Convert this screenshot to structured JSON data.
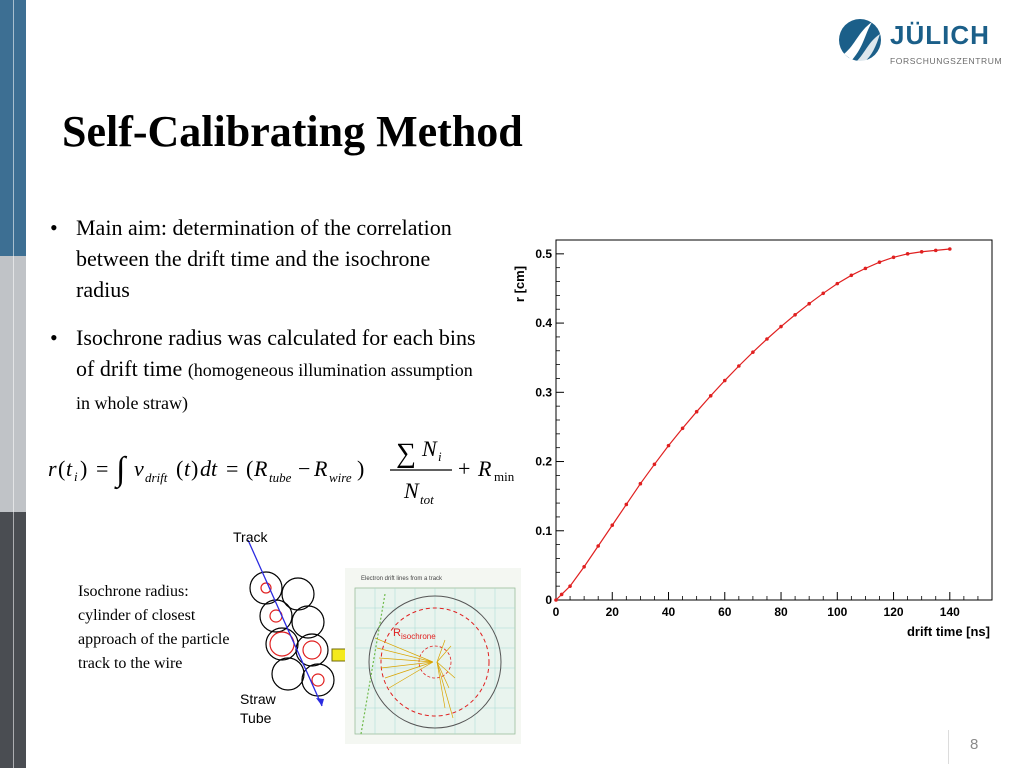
{
  "slide": {
    "title": "Self-Calibrating Method",
    "page_number": "8"
  },
  "logo": {
    "name": "JÜLICH",
    "subtitle": "FORSCHUNGSZENTRUM",
    "color": "#1b5f89"
  },
  "bullets": [
    {
      "text": "Main aim: determination of the correlation between the drift time and the isochrone radius"
    },
    {
      "text": "Isochrone radius was calculated for each bins of drift time ",
      "small": "(homogeneous illumination assumption in whole straw)"
    }
  ],
  "formula": {
    "text": "r(t_i) = ∫ v_drift(t) dt = (R_tube − R_wire) · ΣN_i / N_tot + R_min"
  },
  "illustration": {
    "caption": "Isochrone radius: cylinder of closest approach of the particle track to the wire",
    "track_label": "Track",
    "straw_label_1": "Straw",
    "straw_label_2": "Tube",
    "sim_title": "Electron drift lines from a track",
    "sim_r_label": "R",
    "sim_r_sub": "isochrone"
  },
  "chart_data": {
    "type": "line",
    "title": "",
    "xlabel": "drift time [ns]",
    "ylabel": "r [cm]",
    "xlim": [
      0,
      155
    ],
    "ylim": [
      0,
      0.52
    ],
    "xticks": [
      0,
      20,
      40,
      60,
      80,
      100,
      120,
      140
    ],
    "yticks": [
      0,
      0.1,
      0.2,
      0.3,
      0.4,
      0.5
    ],
    "series_color": "#e02020",
    "x": [
      0,
      2,
      5,
      10,
      15,
      20,
      25,
      30,
      35,
      40,
      45,
      50,
      55,
      60,
      65,
      70,
      75,
      80,
      85,
      90,
      95,
      100,
      105,
      110,
      115,
      120,
      125,
      130,
      135,
      140
    ],
    "y": [
      0.0,
      0.008,
      0.02,
      0.048,
      0.078,
      0.108,
      0.138,
      0.168,
      0.196,
      0.223,
      0.248,
      0.272,
      0.295,
      0.317,
      0.338,
      0.358,
      0.377,
      0.395,
      0.412,
      0.428,
      0.443,
      0.457,
      0.469,
      0.479,
      0.488,
      0.495,
      0.5,
      0.503,
      0.505,
      0.507
    ]
  }
}
